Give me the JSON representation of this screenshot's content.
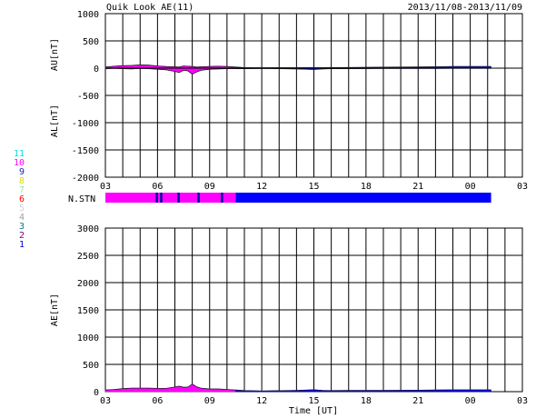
{
  "header": {
    "title": "Quik Look AE(11)",
    "date_range": "2013/11/08-2013/11/09"
  },
  "colors": {
    "magenta": "#ff00ff",
    "blue": "#0000ff",
    "grid": "#000000"
  },
  "station_legend": [
    {
      "label": "11",
      "color": "#00e0e0"
    },
    {
      "label": "10",
      "color": "#ff00ff"
    },
    {
      "label": "9",
      "color": "#2020c0"
    },
    {
      "label": "8",
      "color": "#e0e000"
    },
    {
      "label": "7",
      "color": "#a0e0a0"
    },
    {
      "label": "6",
      "color": "#ff0000"
    },
    {
      "label": "5",
      "color": "#d0d0d0"
    },
    {
      "label": "4",
      "color": "#a0a0a0"
    },
    {
      "label": "3",
      "color": "#008080"
    },
    {
      "label": "2",
      "color": "#800080"
    },
    {
      "label": "1",
      "color": "#0000c0"
    }
  ],
  "nstn": {
    "label": "N.STN",
    "segments": [
      {
        "start": 3.0,
        "end": 10.5,
        "color": "#ff00ff"
      },
      {
        "start": 10.5,
        "end": 25.2,
        "color": "#0000ff"
      }
    ],
    "markers": [
      5.95,
      6.2,
      7.2,
      8.35,
      9.7
    ]
  },
  "chart_data": [
    {
      "type": "area",
      "ylabel_top": "AU[nT]",
      "ylabel_bottom": "AL[nT]",
      "ylim": [
        -2000,
        1000
      ],
      "yticks": [
        1000,
        500,
        0,
        -500,
        -1000,
        -1500,
        -2000
      ],
      "xlim": [
        3,
        27
      ],
      "xticks": [
        "03",
        "06",
        "09",
        "12",
        "15",
        "18",
        "21",
        "00",
        "03"
      ],
      "x_hours": [
        3,
        3.5,
        4,
        4.5,
        5,
        5.5,
        6,
        6.5,
        7,
        7.25,
        7.5,
        7.75,
        8,
        8.25,
        8.5,
        9,
        9.5,
        10,
        10.5,
        11,
        12,
        13,
        14,
        15,
        15.5,
        16,
        17,
        18,
        19,
        20,
        21,
        22,
        23,
        24,
        25,
        25.2
      ],
      "series": [
        {
          "values": [
            20,
            35,
            45,
            50,
            60,
            55,
            40,
            30,
            25,
            20,
            40,
            35,
            30,
            20,
            25,
            30,
            35,
            30,
            20,
            10,
            8,
            8,
            8,
            10,
            8,
            10,
            12,
            15,
            18,
            20,
            22,
            25,
            30,
            30,
            30,
            30
          ]
        },
        {
          "values": [
            -10,
            -5,
            -10,
            -15,
            -5,
            -10,
            -20,
            -30,
            -60,
            -80,
            -40,
            -50,
            -110,
            -70,
            -40,
            -20,
            -15,
            -10,
            -10,
            -10,
            -5,
            -10,
            -15,
            -25,
            -15,
            -10,
            -10,
            -8,
            -5,
            -5,
            -5,
            -5,
            -3,
            -3,
            -3,
            -3
          ]
        }
      ]
    },
    {
      "type": "area",
      "ylabel": "AE[nT]",
      "ylim": [
        0,
        3000
      ],
      "yticks": [
        3000,
        2500,
        2000,
        1500,
        1000,
        500,
        0
      ],
      "xlim": [
        3,
        27
      ],
      "xticks": [
        "03",
        "06",
        "09",
        "12",
        "15",
        "18",
        "21",
        "00",
        "03"
      ],
      "xlabel": "Time [UT]",
      "x_hours": [
        3,
        3.5,
        4,
        4.5,
        5,
        5.5,
        6,
        6.5,
        7,
        7.25,
        7.5,
        7.75,
        8,
        8.25,
        8.5,
        9,
        9.5,
        10,
        10.5,
        11,
        12,
        13,
        14,
        15,
        15.5,
        16,
        17,
        18,
        19,
        20,
        21,
        22,
        23,
        24,
        25,
        25.2
      ],
      "values": [
        30,
        40,
        55,
        65,
        65,
        65,
        60,
        60,
        85,
        100,
        80,
        85,
        140,
        90,
        65,
        50,
        50,
        40,
        30,
        20,
        13,
        18,
        23,
        35,
        23,
        20,
        22,
        23,
        23,
        25,
        27,
        30,
        33,
        33,
        33,
        33
      ]
    }
  ]
}
